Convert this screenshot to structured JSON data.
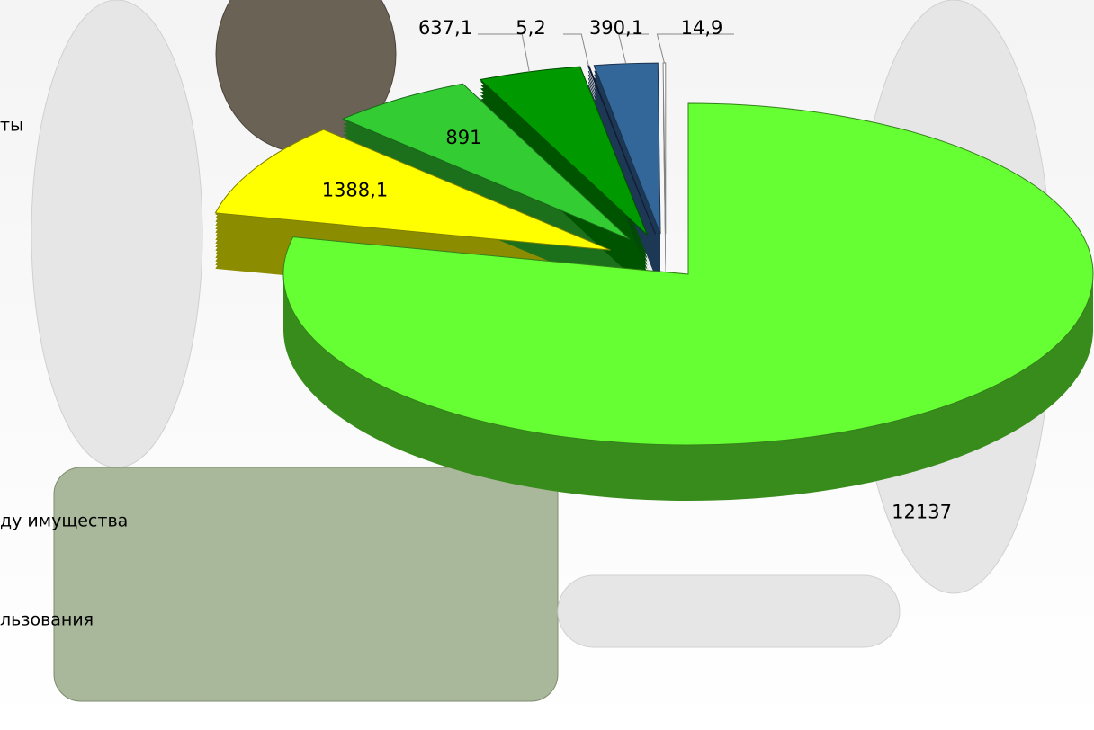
{
  "chart_data": {
    "type": "pie3d",
    "values": [
      12137,
      1388.1,
      891,
      637.1,
      5.2,
      390.1,
      14.9
    ],
    "value_labels": [
      "12137",
      "1388,1",
      "891",
      "637,1",
      "5,2",
      "390,1",
      "14,9"
    ],
    "colors": [
      "#66ff33",
      "#ffff00",
      "#33cc33",
      "#009900",
      "#1f3864",
      "#336699",
      "#ffffff"
    ],
    "cropped_labels": [
      "ты",
      "ду имущества",
      "льзования"
    ]
  }
}
